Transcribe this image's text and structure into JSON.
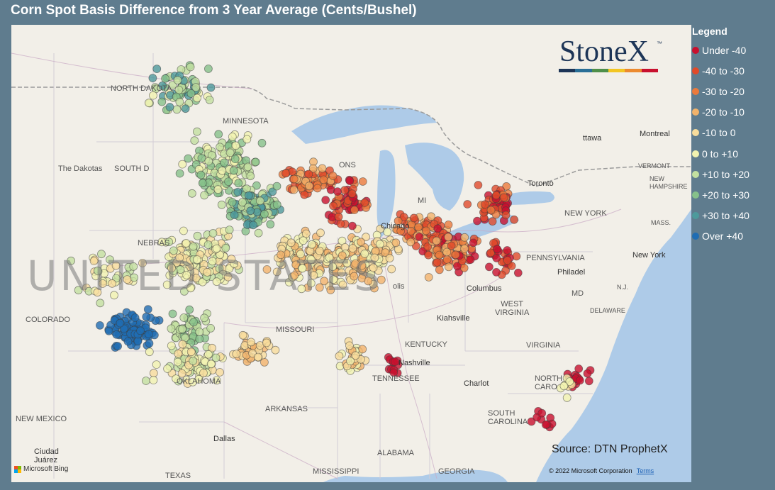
{
  "title": "Corn Spot Basis Difference from 3 Year Average (Cents/Bushel)",
  "legend": {
    "title": "Legend",
    "items": [
      {
        "label": "Under -40",
        "color": "#c8102e"
      },
      {
        "label": "-40 to -30",
        "color": "#e04a2a"
      },
      {
        "label": "-30 to -20",
        "color": "#eb7a3c"
      },
      {
        "label": "-20 to -10",
        "color": "#f2b36b"
      },
      {
        "label": "-10 to 0",
        "color": "#f7dc9c"
      },
      {
        "label": "0 to +10",
        "color": "#f1f2b0"
      },
      {
        "label": "+10 to +20",
        "color": "#c3e0a0"
      },
      {
        "label": "+20 to +30",
        "color": "#86c08a"
      },
      {
        "label": "+30 to +40",
        "color": "#4d9a9c"
      },
      {
        "label": "Over +40",
        "color": "#1f6db3"
      }
    ]
  },
  "source": "Source: DTN ProphetX",
  "copyright": "© 2022 Microsoft Corporation",
  "terms_link": "Terms",
  "bing_label": "Microsoft Bing",
  "logo": {
    "text": "StoneX",
    "tm": "™",
    "bar_colors": [
      "#1d3557",
      "#2a6f97",
      "#4f8f4a",
      "#f3c623",
      "#ec8a2f",
      "#c8102e"
    ]
  },
  "map_labels": {
    "north_dakota": "NORTH DAKOTA",
    "minnesota": "MINNESOTA",
    "the_dakotas": "The Dakotas",
    "south_dakota": "SOUTH D",
    "wisconsin": "ONS",
    "michigan": "MI",
    "chicago": "Chicago",
    "nebraska": "NEBRAS",
    "colorado": "COLORADO",
    "missouri": "MISSOURI",
    "kentucky": "KENTUCKY",
    "tennessee": "TENNESSEE",
    "nashville": "Nashville",
    "oklahoma": "OKLAHOMA",
    "arkansas": "ARKANSAS",
    "new_mexico": "NEW MEXICO",
    "ciudad_juarez": "Ciudad\nJuárez",
    "dallas": "Dallas",
    "texas": "TEXAS",
    "mississippi": "MISSISSIPPI",
    "alabama": "ALABAMA",
    "georgia": "GEORGIA",
    "south_carolina": "SOUTH\nCAROLINA",
    "north_carolina": "NORTH\nCARO",
    "charlotte": "Charlot",
    "virginia": "VIRGINIA",
    "west_virginia": "WEST\nVIRGINIA",
    "kiahsville": "Kiahsville",
    "columbus": "Columbus",
    "pennsylvania": "PENNSYLVANIA",
    "philadelphia": "Philadel",
    "new_york_state": "NEW YORK",
    "new_york_city": "New York",
    "nj": "N.J.",
    "md": "MD",
    "delaware": "DELAWARE",
    "montreal": "Montreal",
    "ottawa": "ttawa",
    "toronto": "Toronto",
    "vermont": "VERMONT",
    "new_hampshire": "NEW\nHAMPSHIRE",
    "mass": "MASS.",
    "united_states": "UNITED STATES",
    "indianapolis": "olis"
  }
}
